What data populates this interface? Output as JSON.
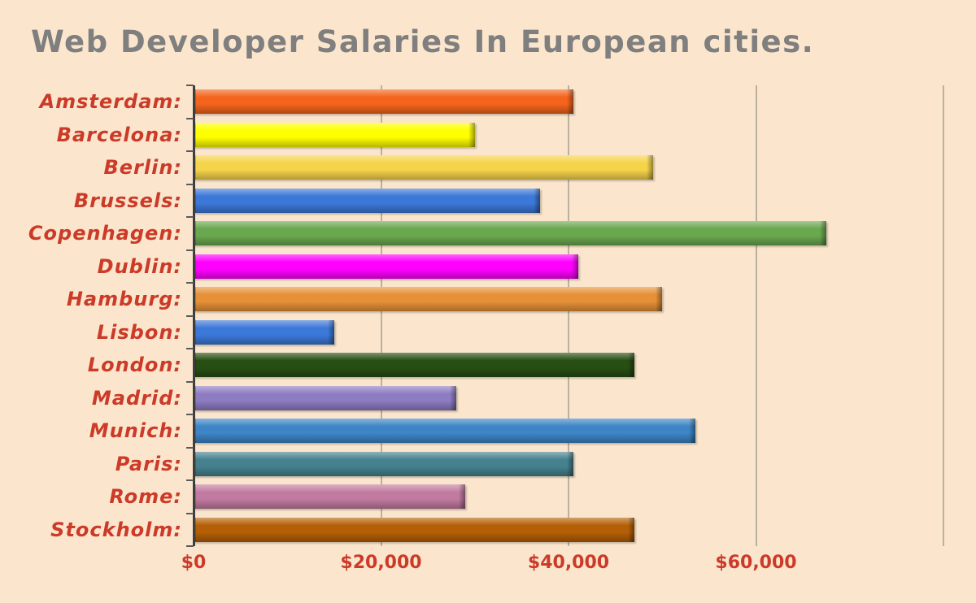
{
  "title": "Web Developer Salaries In European cities.",
  "colors": {
    "background": "#fbe6cd",
    "title_text": "#7f7f7f",
    "category_label_text": "#cc3a28",
    "x_tick_text": "#cc3a28",
    "gridline": "#b9b0a0",
    "axis_line": "#3e3e3e"
  },
  "chart_data": {
    "type": "bar",
    "orientation": "horizontal",
    "title": "Web Developer Salaries In European cities.",
    "categories": [
      "Amsterdam:",
      "Barcelona:",
      "Berlin:",
      "Brussels:",
      "Copenhagen:",
      "Dublin:",
      "Hamburg:",
      "Lisbon:",
      "London:",
      "Madrid:",
      "Munich:",
      "Paris:",
      "Rome:",
      "Stockholm:"
    ],
    "values": [
      40500,
      30000,
      49000,
      37000,
      67500,
      41000,
      50000,
      15000,
      47000,
      28000,
      53500,
      40500,
      29000,
      47000
    ],
    "bar_colors": [
      "#f4641c",
      "#feff00",
      "#f6d44a",
      "#3c78d8",
      "#6aa84f",
      "#fe00fe",
      "#e69138",
      "#3c78d8",
      "#274e13",
      "#8e7cc3",
      "#3d85c6",
      "#45818e",
      "#c27ba0",
      "#b45f06"
    ],
    "xlabel": "",
    "ylabel": "",
    "xlim": [
      0,
      80000
    ],
    "x_ticks": [
      "$0",
      "$20,000",
      "$40,000",
      "$60,000"
    ],
    "x_tick_values": [
      0,
      20000,
      40000,
      60000
    ],
    "gridline_values": [
      0,
      20000,
      40000,
      60000,
      80000
    ],
    "grid": true,
    "legend": "none"
  }
}
